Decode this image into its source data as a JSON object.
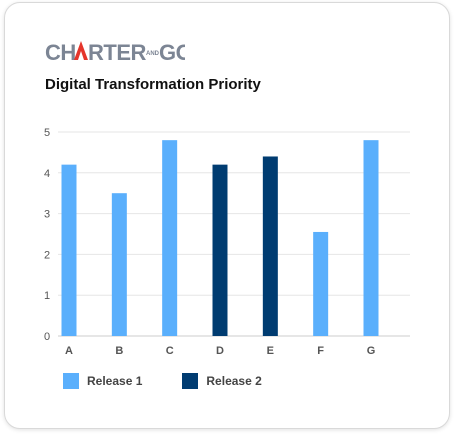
{
  "brand": {
    "part1": "CH",
    "part2": "RTER",
    "small": "AND",
    "part3": "GO",
    "colors": {
      "gray": "#7c8594",
      "red": "#e5352b"
    }
  },
  "chart_data": {
    "type": "bar",
    "title": "Digital Transformation Priority",
    "categories": [
      "A",
      "B",
      "C",
      "D",
      "E",
      "F",
      "G"
    ],
    "values": [
      4.2,
      3.5,
      4.8,
      4.2,
      4.4,
      2.55,
      4.8
    ],
    "release": [
      "Release 1",
      "Release 1",
      "Release 1",
      "Release 2",
      "Release 2",
      "Release 1",
      "Release 1"
    ],
    "series": [
      {
        "name": "Release 1",
        "color": "#5aaffc"
      },
      {
        "name": "Release 2",
        "color": "#003c71"
      }
    ],
    "ylim": [
      0,
      5
    ],
    "yticks": [
      0,
      1,
      2,
      3,
      4,
      5
    ],
    "grid": true,
    "legend_position": "bottom-left"
  }
}
